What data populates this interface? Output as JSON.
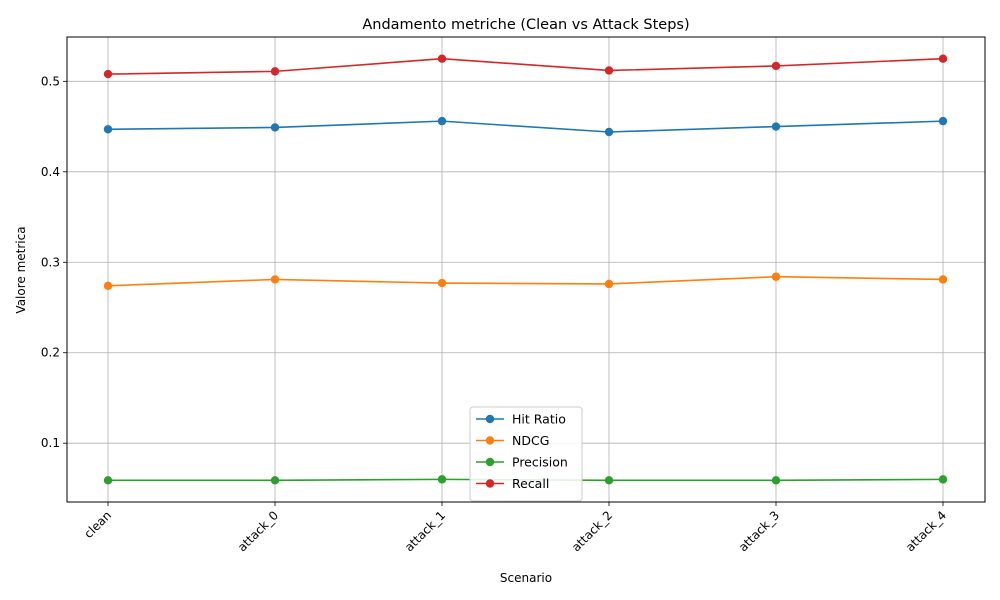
{
  "chart_data": {
    "type": "line",
    "title": "Andamento metriche (Clean vs Attack Steps)",
    "xlabel": "Scenario",
    "ylabel": "Valore metrica",
    "categories": [
      "clean",
      "attack_0",
      "attack_1",
      "attack_2",
      "attack_3",
      "attack_4"
    ],
    "ylim": [
      0.035,
      0.549
    ],
    "yticks": [
      "0.1",
      "0.2",
      "0.3",
      "0.4",
      "0.5"
    ],
    "ytick_values": [
      0.1,
      0.2,
      0.3,
      0.4,
      0.5
    ],
    "grid": true,
    "legend_position": "bottom-center",
    "series": [
      {
        "name": "Hit Ratio",
        "color": "#1f77b4",
        "values": [
          0.447,
          0.449,
          0.456,
          0.444,
          0.45,
          0.456
        ]
      },
      {
        "name": "NDCG",
        "color": "#ff7f0e",
        "values": [
          0.274,
          0.281,
          0.277,
          0.276,
          0.284,
          0.281
        ]
      },
      {
        "name": "Precision",
        "color": "#2ca02c",
        "values": [
          0.059,
          0.059,
          0.06,
          0.059,
          0.059,
          0.06
        ]
      },
      {
        "name": "Recall",
        "color": "#d62728",
        "values": [
          0.508,
          0.511,
          0.525,
          0.512,
          0.517,
          0.525
        ]
      }
    ]
  }
}
